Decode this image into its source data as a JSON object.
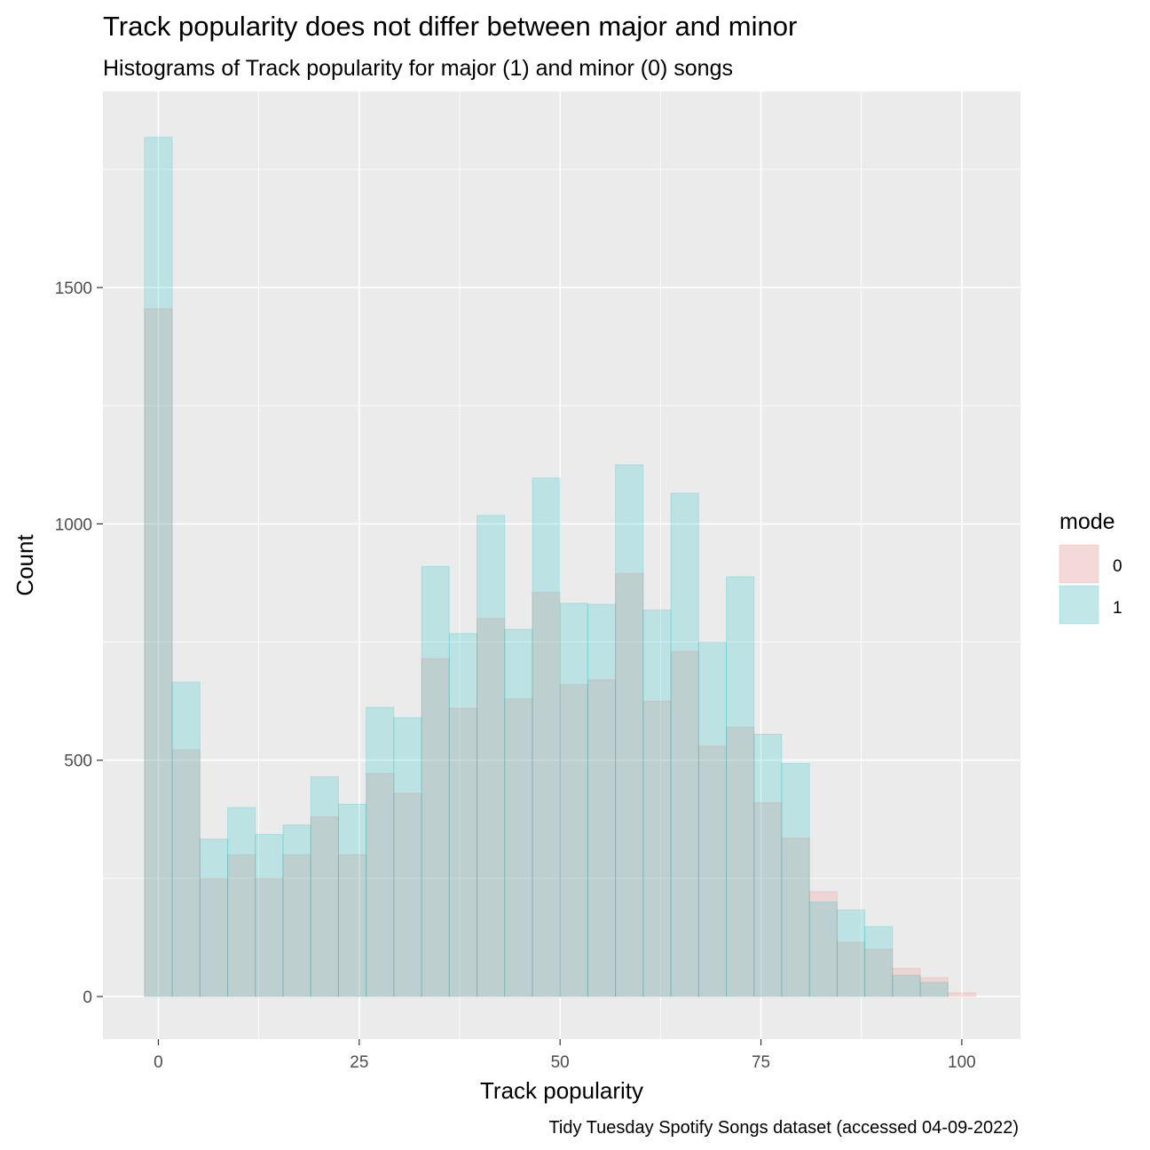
{
  "chart_data": {
    "type": "histogram",
    "title": "Track popularity does not differ between major and minor",
    "subtitle": "Histograms of Track popularity for major (1) and minor (0) songs",
    "xlabel": "Track popularity",
    "ylabel": "Count",
    "caption": "Tidy Tuesday Spotify Songs dataset (accessed 04-09-2022)",
    "xlim": [
      -6.9,
      107.3
    ],
    "ylim": [
      -90,
      1915
    ],
    "x_ticks": [
      0,
      25,
      50,
      75,
      100
    ],
    "y_ticks": [
      0,
      500,
      1000,
      1500
    ],
    "x_tick_labels": [
      "0",
      "25",
      "50",
      "75",
      "100"
    ],
    "y_tick_labels": [
      "0",
      "500",
      "1000",
      "1500"
    ],
    "bin_width": 3.448,
    "bin_starts": [
      -1.724,
      1.724,
      5.172,
      8.621,
      12.069,
      15.517,
      18.966,
      22.414,
      25.862,
      29.31,
      32.759,
      36.207,
      39.655,
      43.103,
      46.552,
      50.0,
      53.448,
      56.897,
      60.345,
      63.793,
      67.241,
      70.69,
      74.138,
      77.586,
      81.034,
      84.483,
      87.931,
      91.379,
      94.828,
      98.276
    ],
    "grid": true,
    "legend": {
      "title": "mode",
      "position": "right"
    },
    "series": [
      {
        "name": "0",
        "color": "#F8766D",
        "values": [
          1455,
          522,
          250,
          300,
          250,
          300,
          380,
          300,
          472,
          430,
          715,
          610,
          800,
          630,
          855,
          660,
          670,
          895,
          625,
          730,
          530,
          570,
          410,
          335,
          222,
          115,
          100,
          60,
          40,
          8
        ]
      },
      {
        "name": "1",
        "color": "#00BFC4",
        "values": [
          1818,
          665,
          333,
          400,
          343,
          363,
          465,
          407,
          612,
          590,
          910,
          768,
          1018,
          777,
          1097,
          832,
          830,
          1125,
          818,
          1065,
          750,
          888,
          555,
          493,
          200,
          183,
          148,
          45,
          30,
          0
        ]
      }
    ]
  }
}
